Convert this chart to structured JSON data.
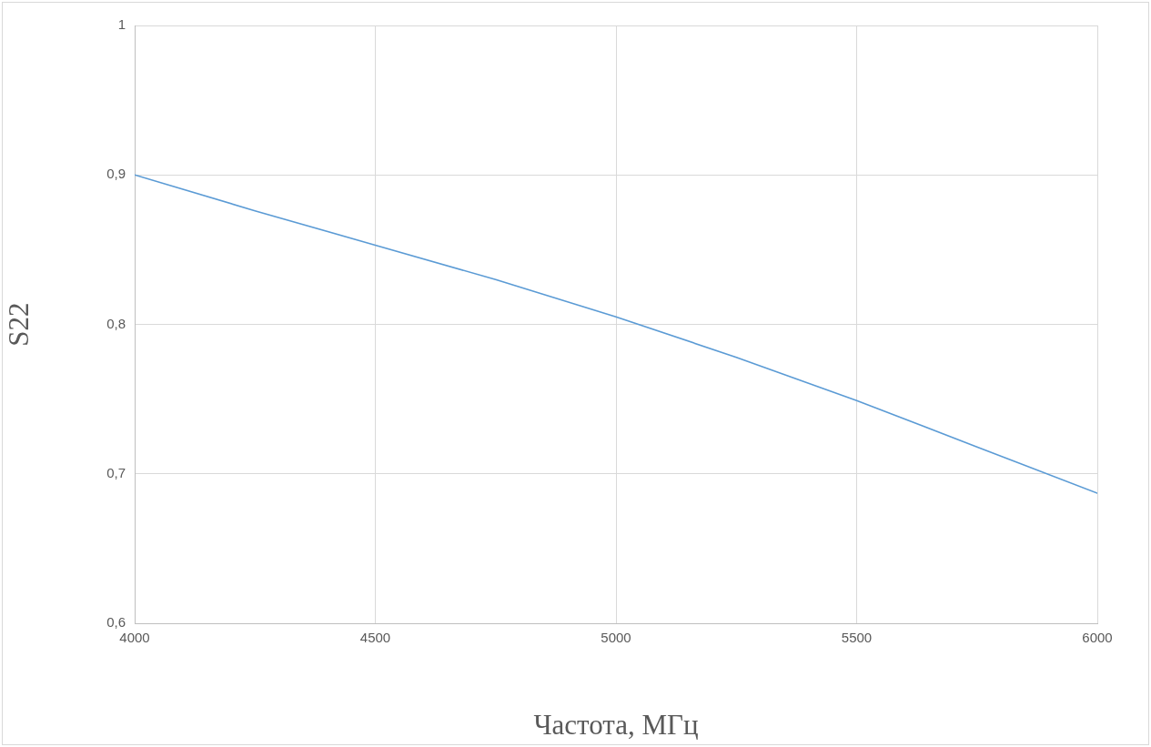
{
  "chart_data": {
    "type": "line",
    "xlabel": "Частота, МГц",
    "ylabel": "S22",
    "x": [
      4000,
      4250,
      4500,
      4750,
      5000,
      5250,
      5500,
      5750,
      6000
    ],
    "series": [
      {
        "color": "#5b9bd5",
        "values": [
          0.9,
          0.876,
          0.853,
          0.83,
          0.805,
          0.778,
          0.749,
          0.718,
          0.687
        ]
      }
    ],
    "xlim": [
      4000,
      6000
    ],
    "xticks": [
      4000,
      4500,
      5000,
      5500,
      6000
    ],
    "ylim": [
      0.6,
      1
    ],
    "yticks": [
      {
        "value": 0.6,
        "label": "0,6"
      },
      {
        "value": 0.7,
        "label": "0,7"
      },
      {
        "value": 0.8,
        "label": "0,8"
      },
      {
        "value": 0.9,
        "label": "0,9"
      },
      1
    ],
    "grid": true,
    "legend": false,
    "marker": "none",
    "line_style": "solid"
  }
}
